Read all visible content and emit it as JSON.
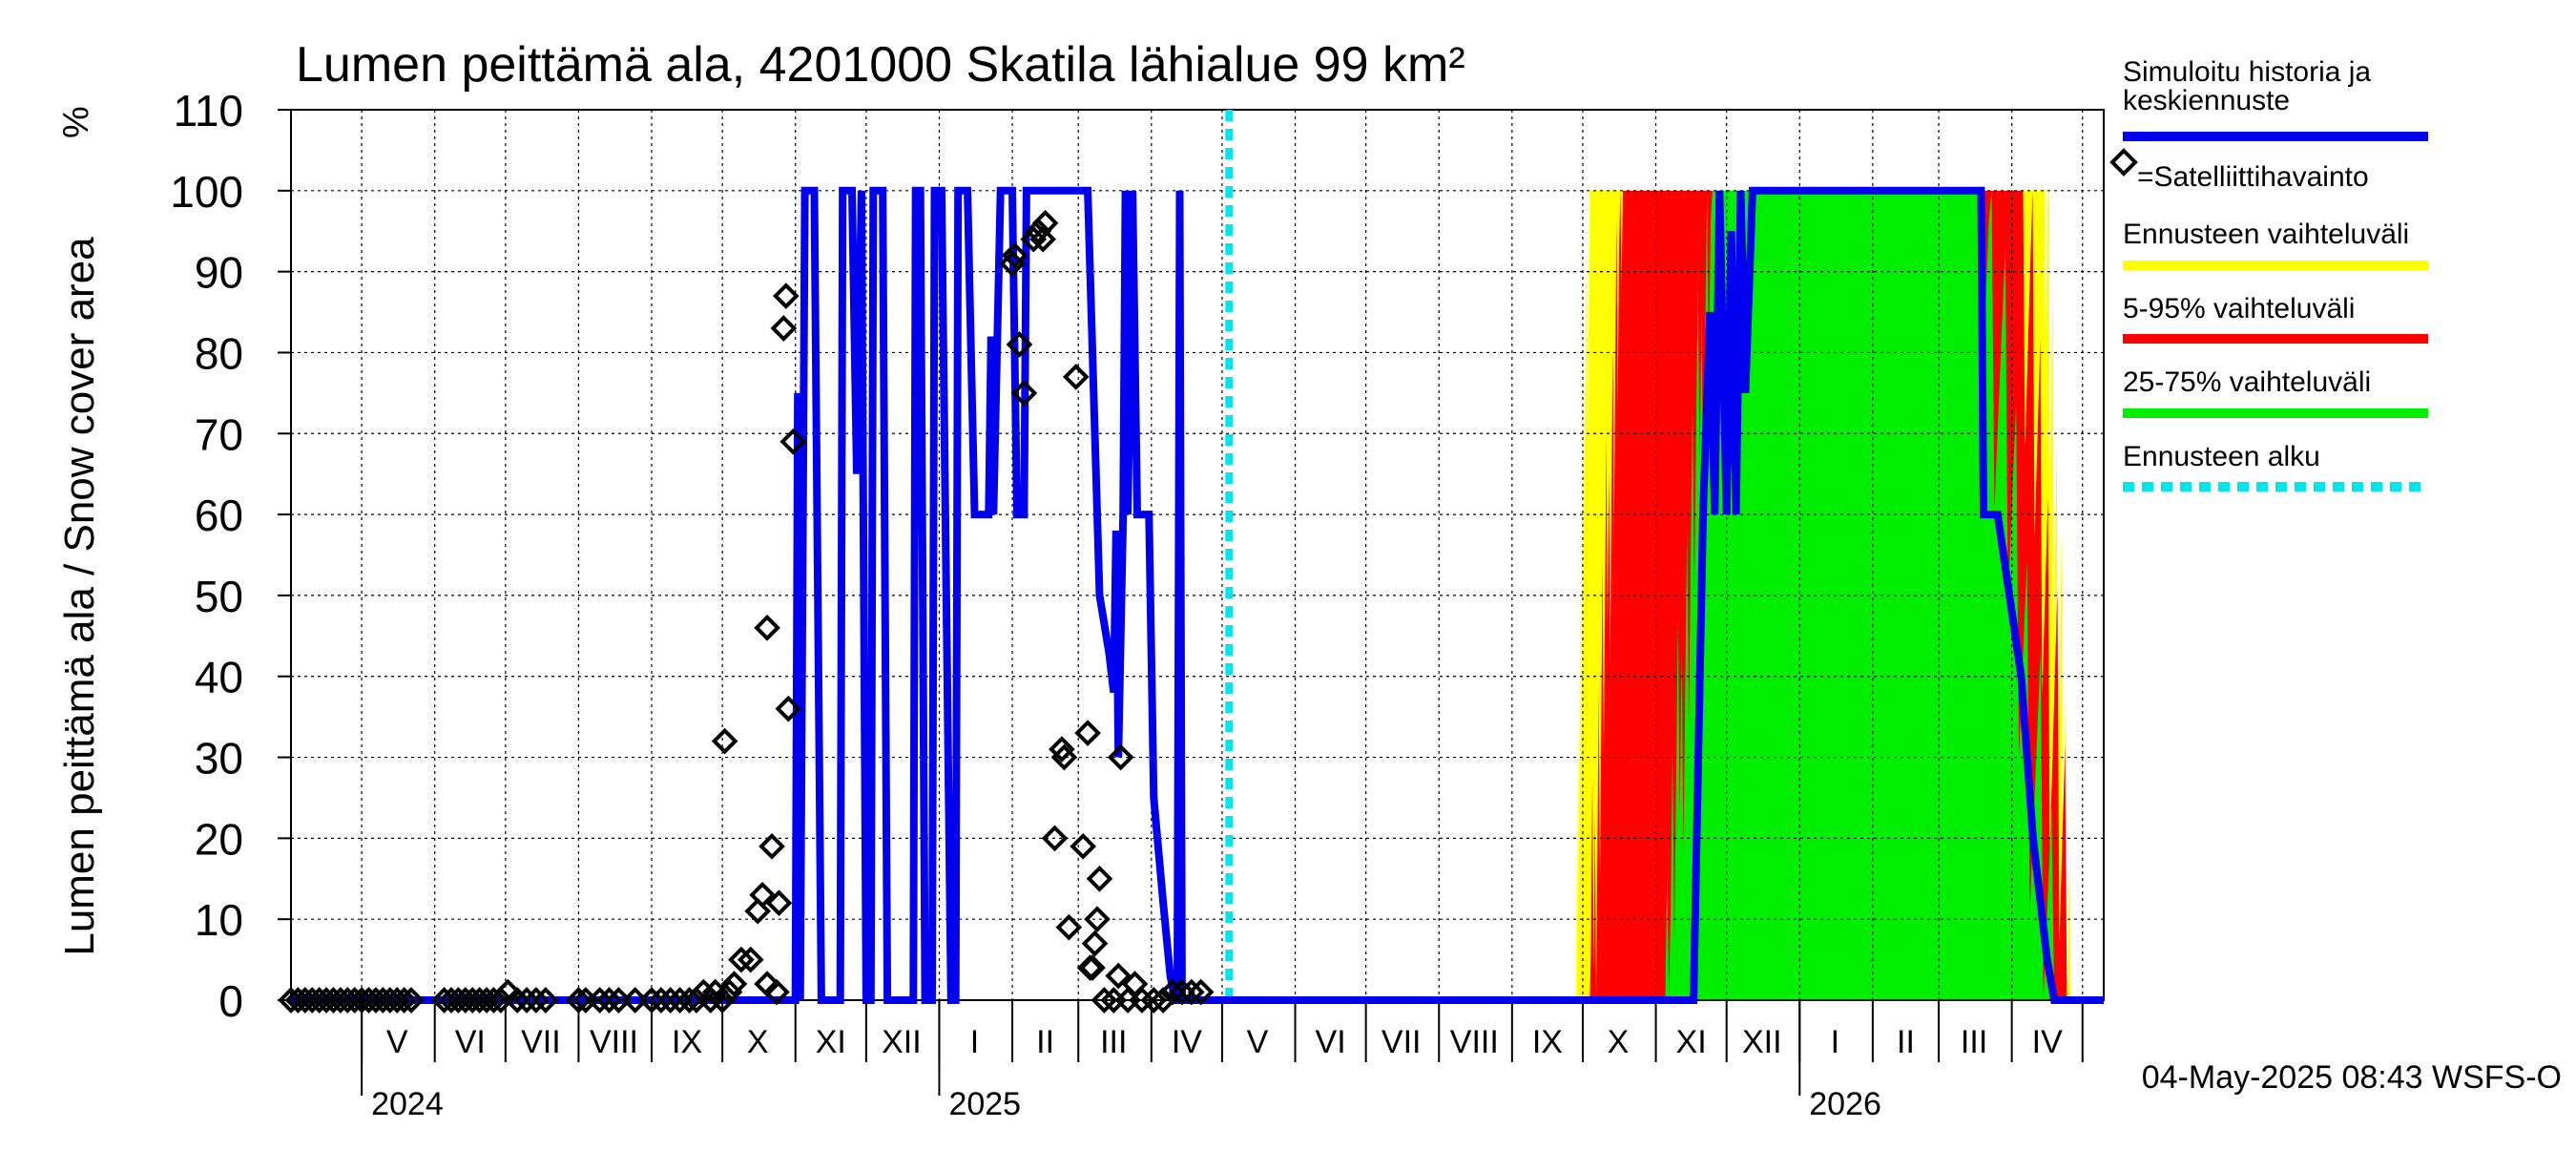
{
  "chart_data": {
    "type": "line",
    "title": "Lumen peittämä ala, 4201000 Skatila lähialue 99 km²",
    "ylabel": "Lumen peittämä ala / Snow cover area",
    "yunit": "%",
    "ylim": [
      0,
      110
    ],
    "yticks": [
      0,
      10,
      20,
      30,
      40,
      50,
      60,
      70,
      80,
      90,
      100,
      110
    ],
    "xlim": [
      "2024-04-01",
      "2026-05-10"
    ],
    "forecast_start": "2025-05-04",
    "month_labels": [
      {
        "label": "V",
        "date": "2024-05-16"
      },
      {
        "label": "VI",
        "date": "2024-06-16"
      },
      {
        "label": "VII",
        "date": "2024-07-16"
      },
      {
        "label": "VIII",
        "date": "2024-08-16"
      },
      {
        "label": "IX",
        "date": "2024-09-16"
      },
      {
        "label": "X",
        "date": "2024-10-16"
      },
      {
        "label": "XI",
        "date": "2024-11-16"
      },
      {
        "label": "XII",
        "date": "2024-12-16"
      },
      {
        "label": "I",
        "date": "2025-01-16"
      },
      {
        "label": "II",
        "date": "2025-02-15"
      },
      {
        "label": "III",
        "date": "2025-03-16"
      },
      {
        "label": "IV",
        "date": "2025-04-16"
      },
      {
        "label": "V",
        "date": "2025-05-16"
      },
      {
        "label": "VI",
        "date": "2025-06-16"
      },
      {
        "label": "VII",
        "date": "2025-07-16"
      },
      {
        "label": "VIII",
        "date": "2025-08-16"
      },
      {
        "label": "IX",
        "date": "2025-09-16"
      },
      {
        "label": "X",
        "date": "2025-10-16"
      },
      {
        "label": "XI",
        "date": "2025-11-16"
      },
      {
        "label": "XII",
        "date": "2025-12-16"
      },
      {
        "label": "I",
        "date": "2026-01-16"
      },
      {
        "label": "II",
        "date": "2026-02-15"
      },
      {
        "label": "III",
        "date": "2026-03-16"
      },
      {
        "label": "IV",
        "date": "2026-04-16"
      }
    ],
    "month_boundaries": [
      "2024-05-01",
      "2024-06-01",
      "2024-07-01",
      "2024-08-01",
      "2024-09-01",
      "2024-10-01",
      "2024-11-01",
      "2024-12-01",
      "2025-01-01",
      "2025-02-01",
      "2025-03-01",
      "2025-04-01",
      "2025-05-01",
      "2025-06-01",
      "2025-07-01",
      "2025-08-01",
      "2025-09-01",
      "2025-10-01",
      "2025-11-01",
      "2025-12-01",
      "2026-01-01",
      "2026-02-01",
      "2026-03-01",
      "2026-04-01",
      "2026-05-01"
    ],
    "year_labels": [
      {
        "label": "2024",
        "date": "2024-05-01"
      },
      {
        "label": "2025",
        "date": "2025-01-01"
      },
      {
        "label": "2026",
        "date": "2026-01-01"
      }
    ],
    "series": [
      {
        "name": "Simuloitu historia ja keskiennuste",
        "color": "#0000ee",
        "points": [
          [
            "2024-04-01",
            0
          ],
          [
            "2024-11-01",
            0
          ],
          [
            "2024-11-02",
            75
          ],
          [
            "2024-11-03",
            0
          ],
          [
            "2024-11-05",
            100
          ],
          [
            "2024-11-09",
            100
          ],
          [
            "2024-11-12",
            0
          ],
          [
            "2024-11-20",
            0
          ],
          [
            "2024-11-21",
            100
          ],
          [
            "2024-11-25",
            100
          ],
          [
            "2024-11-27",
            65
          ],
          [
            "2024-11-29",
            100
          ],
          [
            "2024-12-01",
            0
          ],
          [
            "2024-12-03",
            0
          ],
          [
            "2024-12-04",
            100
          ],
          [
            "2024-12-08",
            100
          ],
          [
            "2024-12-10",
            0
          ],
          [
            "2024-12-21",
            0
          ],
          [
            "2024-12-22",
            100
          ],
          [
            "2024-12-24",
            100
          ],
          [
            "2024-12-26",
            0
          ],
          [
            "2024-12-29",
            0
          ],
          [
            "2024-12-30",
            100
          ],
          [
            "2025-01-02",
            100
          ],
          [
            "2025-01-06",
            0
          ],
          [
            "2025-01-08",
            0
          ],
          [
            "2025-01-09",
            100
          ],
          [
            "2025-01-13",
            100
          ],
          [
            "2025-01-16",
            60
          ],
          [
            "2025-01-22",
            60
          ],
          [
            "2025-01-23",
            82
          ],
          [
            "2025-01-24",
            60
          ],
          [
            "2025-01-27",
            100
          ],
          [
            "2025-02-01",
            100
          ],
          [
            "2025-02-03",
            60
          ],
          [
            "2025-02-06",
            60
          ],
          [
            "2025-02-07",
            100
          ],
          [
            "2025-03-05",
            100
          ],
          [
            "2025-03-10",
            50
          ],
          [
            "2025-03-14",
            43
          ],
          [
            "2025-03-16",
            38
          ],
          [
            "2025-03-17",
            58
          ],
          [
            "2025-03-18",
            30
          ],
          [
            "2025-03-20",
            60
          ],
          [
            "2025-03-21",
            100
          ],
          [
            "2025-03-22",
            60
          ],
          [
            "2025-03-24",
            100
          ],
          [
            "2025-03-26",
            60
          ],
          [
            "2025-03-31",
            60
          ],
          [
            "2025-04-02",
            25
          ],
          [
            "2025-04-06",
            12
          ],
          [
            "2025-04-09",
            3
          ],
          [
            "2025-04-11",
            0
          ],
          [
            "2025-04-12",
            0
          ],
          [
            "2025-04-13",
            100
          ],
          [
            "2025-04-14",
            0
          ],
          [
            "2025-05-04",
            0
          ],
          [
            "2025-11-17",
            0
          ],
          [
            "2025-11-21",
            60
          ],
          [
            "2025-11-24",
            85
          ],
          [
            "2025-11-26",
            60
          ],
          [
            "2025-11-28",
            100
          ],
          [
            "2025-12-01",
            60
          ],
          [
            "2025-12-03",
            95
          ],
          [
            "2025-12-05",
            60
          ],
          [
            "2025-12-07",
            100
          ],
          [
            "2025-12-09",
            75
          ],
          [
            "2025-12-12",
            100
          ],
          [
            "2026-03-19",
            100
          ],
          [
            "2026-03-20",
            60
          ],
          [
            "2026-03-26",
            60
          ],
          [
            "2026-03-31",
            50
          ],
          [
            "2026-04-05",
            40
          ],
          [
            "2026-04-10",
            20
          ],
          [
            "2026-04-16",
            5
          ],
          [
            "2026-04-19",
            0
          ],
          [
            "2026-05-10",
            0
          ]
        ]
      }
    ],
    "observations": {
      "name": "Satelliittihavainto",
      "points": [
        [
          "2024-04-01",
          0
        ],
        [
          "2024-04-04",
          0
        ],
        [
          "2024-04-07",
          0
        ],
        [
          "2024-04-10",
          0
        ],
        [
          "2024-04-13",
          0
        ],
        [
          "2024-04-16",
          0
        ],
        [
          "2024-04-19",
          0
        ],
        [
          "2024-04-22",
          0
        ],
        [
          "2024-04-25",
          0
        ],
        [
          "2024-04-28",
          0
        ],
        [
          "2024-05-01",
          0
        ],
        [
          "2024-05-04",
          0
        ],
        [
          "2024-05-07",
          0
        ],
        [
          "2024-05-10",
          0
        ],
        [
          "2024-05-13",
          0
        ],
        [
          "2024-05-16",
          0
        ],
        [
          "2024-05-19",
          0
        ],
        [
          "2024-05-22",
          0
        ],
        [
          "2024-06-05",
          0
        ],
        [
          "2024-06-08",
          0
        ],
        [
          "2024-06-11",
          0
        ],
        [
          "2024-06-14",
          0
        ],
        [
          "2024-06-17",
          0
        ],
        [
          "2024-06-20",
          0
        ],
        [
          "2024-06-23",
          0
        ],
        [
          "2024-06-26",
          0
        ],
        [
          "2024-06-29",
          0
        ],
        [
          "2024-07-02",
          1
        ],
        [
          "2024-07-06",
          0
        ],
        [
          "2024-07-10",
          0
        ],
        [
          "2024-07-14",
          0
        ],
        [
          "2024-07-18",
          0
        ],
        [
          "2024-08-01",
          0
        ],
        [
          "2024-08-04",
          0
        ],
        [
          "2024-08-10",
          0
        ],
        [
          "2024-08-14",
          0
        ],
        [
          "2024-08-18",
          0
        ],
        [
          "2024-08-25",
          0
        ],
        [
          "2024-09-01",
          0
        ],
        [
          "2024-09-05",
          0
        ],
        [
          "2024-09-09",
          0
        ],
        [
          "2024-09-13",
          0
        ],
        [
          "2024-09-17",
          0
        ],
        [
          "2024-09-20",
          0
        ],
        [
          "2024-09-23",
          1
        ],
        [
          "2024-09-26",
          0
        ],
        [
          "2024-09-28",
          1
        ],
        [
          "2024-10-01",
          0
        ],
        [
          "2024-10-02",
          32
        ],
        [
          "2024-10-04",
          1
        ],
        [
          "2024-10-06",
          2
        ],
        [
          "2024-10-09",
          5
        ],
        [
          "2024-10-13",
          5
        ],
        [
          "2024-10-16",
          11
        ],
        [
          "2024-10-18",
          13
        ],
        [
          "2024-10-20",
          46
        ],
        [
          "2024-10-20",
          2
        ],
        [
          "2024-10-22",
          19
        ],
        [
          "2024-10-24",
          1
        ],
        [
          "2024-10-25",
          12
        ],
        [
          "2024-10-27",
          83
        ],
        [
          "2024-10-28",
          87
        ],
        [
          "2024-10-29",
          36
        ],
        [
          "2024-10-31",
          69
        ],
        [
          "2025-02-01",
          91
        ],
        [
          "2025-02-02",
          92
        ],
        [
          "2025-02-04",
          81
        ],
        [
          "2025-02-06",
          75
        ],
        [
          "2025-02-10",
          94
        ],
        [
          "2025-02-12",
          95
        ],
        [
          "2025-02-14",
          94
        ],
        [
          "2025-02-15",
          96
        ],
        [
          "2025-02-19",
          20
        ],
        [
          "2025-02-22",
          31
        ],
        [
          "2025-02-23",
          30
        ],
        [
          "2025-02-25",
          9
        ],
        [
          "2025-02-28",
          77
        ],
        [
          "2025-03-03",
          19
        ],
        [
          "2025-03-05",
          33
        ],
        [
          "2025-03-06",
          4
        ],
        [
          "2025-03-07",
          4
        ],
        [
          "2025-03-08",
          7
        ],
        [
          "2025-03-09",
          10
        ],
        [
          "2025-03-10",
          15
        ],
        [
          "2025-03-12",
          0
        ],
        [
          "2025-03-16",
          0
        ],
        [
          "2025-03-18",
          3
        ],
        [
          "2025-03-19",
          30
        ],
        [
          "2025-03-22",
          0
        ],
        [
          "2025-03-25",
          2
        ],
        [
          "2025-03-28",
          0
        ],
        [
          "2025-04-02",
          0
        ],
        [
          "2025-04-06",
          0
        ],
        [
          "2025-04-10",
          1
        ],
        [
          "2025-04-14",
          1
        ],
        [
          "2025-04-18",
          1
        ],
        [
          "2025-04-22",
          1
        ]
      ]
    },
    "forecast_bands": [
      {
        "name": "Ennusteen vaihteluväli",
        "color": "#ffff00",
        "rise_start": "2025-09-28",
        "rise_end": "2025-10-04",
        "fall_start": "2026-04-15",
        "fall_end": "2026-04-26"
      },
      {
        "name": "5-95% vaihteluväli",
        "color": "#ff0000",
        "rise_start": "2025-10-04",
        "rise_end": "2025-10-18",
        "fall_start": "2026-04-05",
        "fall_end": "2026-04-26"
      },
      {
        "name": "25-75% vaihteluväli",
        "color": "#00ee00",
        "rise_start": "2025-11-05",
        "rise_end": "2025-11-25",
        "fall_start": "2026-03-20",
        "fall_end": "2026-04-19"
      }
    ],
    "legend": [
      {
        "label": "Simuloitu historia ja keskiennuste",
        "kind": "line",
        "color": "#0000ee"
      },
      {
        "label": "=Satelliittihavainto",
        "kind": "marker",
        "color": "#000000"
      },
      {
        "label": "Ennusteen vaihteluväli",
        "kind": "line",
        "color": "#ffff00"
      },
      {
        "label": "5-95% vaihteluväli",
        "kind": "line",
        "color": "#ff0000"
      },
      {
        "label": "25-75% vaihteluväli",
        "kind": "line",
        "color": "#00ee00"
      },
      {
        "label": "Ennusteen alku",
        "kind": "dashed",
        "color": "#00e5ee"
      }
    ],
    "legend_position": "right",
    "grid": true,
    "timestamp": "04-May-2025 08:43 WSFS-O"
  }
}
